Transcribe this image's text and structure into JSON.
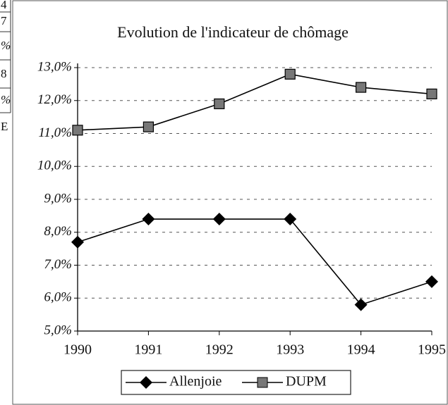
{
  "margin_text": [
    "4",
    "7",
    "%",
    "8",
    "%",
    "E"
  ],
  "chart_data": {
    "type": "line",
    "title": "Evolution de l'indicateur de chômage",
    "categories": [
      "1990",
      "1991",
      "1992",
      "1993",
      "1994",
      "1995"
    ],
    "series": [
      {
        "name": "Allenjoie",
        "color": "#000000",
        "marker": "diamond",
        "values": [
          7.7,
          8.4,
          8.4,
          8.4,
          5.8,
          6.5
        ]
      },
      {
        "name": "DUPM",
        "color": "#000000",
        "marker": "square",
        "values": [
          11.1,
          11.2,
          11.9,
          12.8,
          12.4,
          12.2
        ]
      }
    ],
    "ylim": [
      5,
      13
    ],
    "yticks": [
      {
        "value": 5,
        "label": "5,0%"
      },
      {
        "value": 6,
        "label": "6,0%"
      },
      {
        "value": 7,
        "label": "7,0%"
      },
      {
        "value": 8,
        "label": "8,0%"
      },
      {
        "value": 9,
        "label": "9,0%"
      },
      {
        "value": 10,
        "label": "10,0%"
      },
      {
        "value": 11,
        "label": "11,0%"
      },
      {
        "value": 12,
        "label": "12,0%"
      },
      {
        "value": 13,
        "label": "13,0%"
      }
    ],
    "grid": true,
    "legend": "bottom"
  }
}
